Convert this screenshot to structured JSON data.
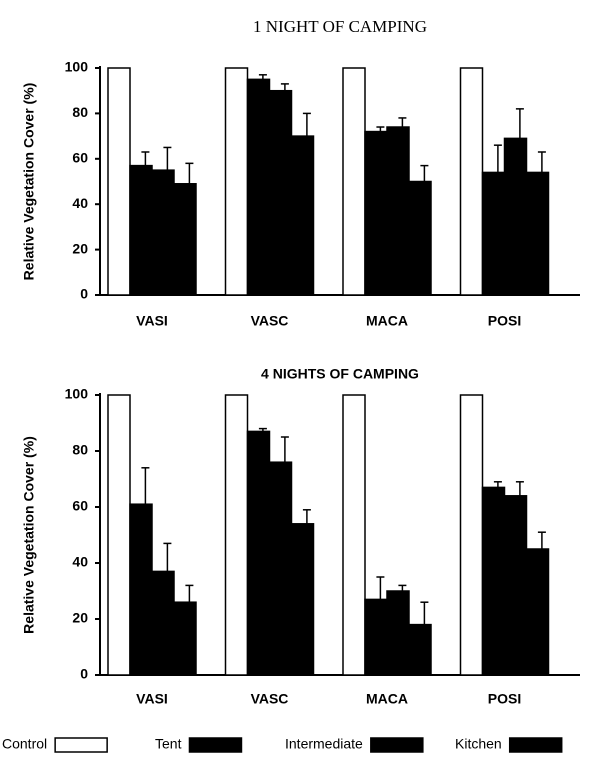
{
  "chart_data": [
    {
      "type": "bar",
      "title": "1 NIGHT OF CAMPING",
      "y_label": "Relative Vegetation Cover (%)",
      "categories": [
        "VASI",
        "VASC",
        "MACA",
        "POSI"
      ],
      "ylim": [
        0,
        100
      ],
      "yticks": [
        0,
        20,
        40,
        60,
        80,
        100
      ],
      "series": [
        {
          "color": "#ffffff",
          "values": [
            100,
            100,
            100,
            100
          ]
        },
        {
          "color": "#000000",
          "values": [
            57,
            95,
            72,
            54
          ],
          "errors": [
            6,
            2,
            2,
            12
          ]
        },
        {
          "color": "#000000",
          "values": [
            55,
            90,
            74,
            69
          ],
          "errors": [
            10,
            3,
            4,
            13
          ]
        },
        {
          "color": "#000000",
          "values": [
            49,
            70,
            50,
            54
          ],
          "errors": [
            9,
            10,
            7,
            9
          ]
        }
      ]
    },
    {
      "type": "bar",
      "title": "4 NIGHTS OF CAMPING",
      "y_label": "Relative Vegetation Cover (%)",
      "categories": [
        "VASI",
        "VASC",
        "MACA",
        "POSI"
      ],
      "ylim": [
        0,
        100
      ],
      "yticks": [
        0,
        20,
        40,
        60,
        80,
        100
      ],
      "series": [
        {
          "name": "Control",
          "color": "#ffffff",
          "values": [
            100,
            100,
            100,
            100
          ]
        },
        {
          "name": "Tent",
          "color": "#000000",
          "values": [
            61,
            87,
            27,
            67
          ],
          "errors": [
            13,
            1,
            8,
            2
          ]
        },
        {
          "name": "Intermediate",
          "color": "#000000",
          "values": [
            37,
            76,
            30,
            64
          ],
          "errors": [
            10,
            9,
            2,
            5
          ]
        },
        {
          "name": "Kitchen",
          "color": "#000000",
          "values": [
            26,
            54,
            18,
            45
          ],
          "errors": [
            6,
            5,
            8,
            6
          ]
        }
      ]
    }
  ]
}
